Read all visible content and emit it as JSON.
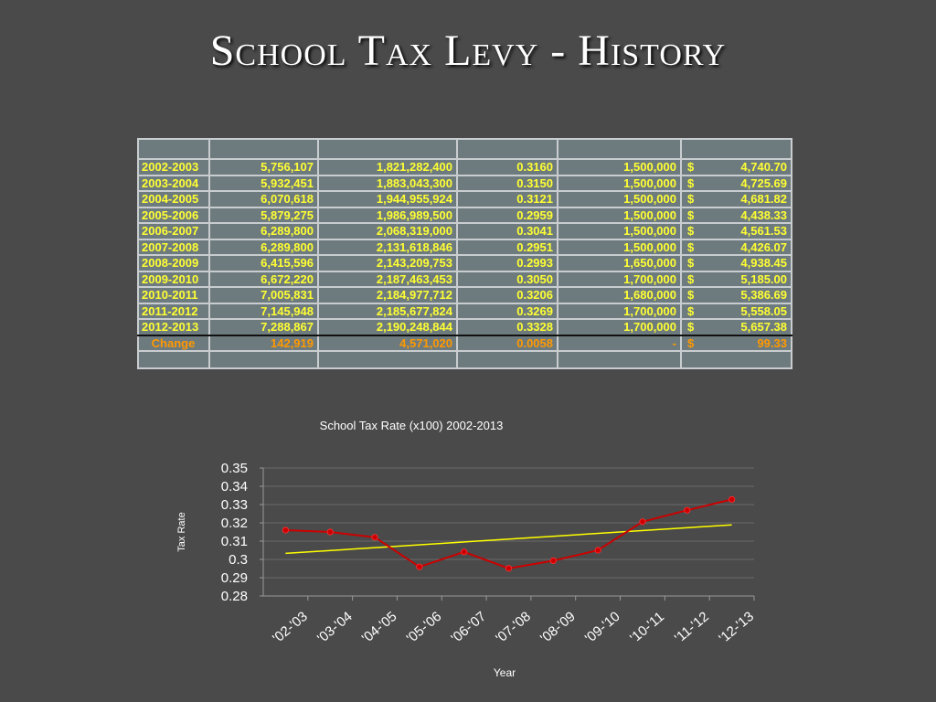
{
  "title": "School Tax Levy - History",
  "table": {
    "rows": [
      {
        "year": "2002-2003",
        "col2": "5,756,107",
        "col3": "1,821,282,400",
        "col4": "0.3160",
        "col5": "1,500,000",
        "currency": "$",
        "col6": "4,740.70"
      },
      {
        "year": "2003-2004",
        "col2": "5,932,451",
        "col3": "1,883,043,300",
        "col4": "0.3150",
        "col5": "1,500,000",
        "currency": "$",
        "col6": "4,725.69"
      },
      {
        "year": "2004-2005",
        "col2": "6,070,618",
        "col3": "1,944,955,924",
        "col4": "0.3121",
        "col5": "1,500,000",
        "currency": "$",
        "col6": "4,681.82"
      },
      {
        "year": "2005-2006",
        "col2": "5,879,275",
        "col3": "1,986,989,500",
        "col4": "0.2959",
        "col5": "1,500,000",
        "currency": "$",
        "col6": "4,438.33"
      },
      {
        "year": "2006-2007",
        "col2": "6,289,800",
        "col3": "2,068,319,000",
        "col4": "0.3041",
        "col5": "1,500,000",
        "currency": "$",
        "col6": "4,561.53"
      },
      {
        "year": "2007-2008",
        "col2": "6,289,800",
        "col3": "2,131,618,846",
        "col4": "0.2951",
        "col5": "1,500,000",
        "currency": "$",
        "col6": "4,426.07"
      },
      {
        "year": "2008-2009",
        "col2": "6,415,596",
        "col3": "2,143,209,753",
        "col4": "0.2993",
        "col5": "1,650,000",
        "currency": "$",
        "col6": "4,938.45"
      },
      {
        "year": "2009-2010",
        "col2": "6,672,220",
        "col3": "2,187,463,453",
        "col4": "0.3050",
        "col5": "1,700,000",
        "currency": "$",
        "col6": "5,185.00"
      },
      {
        "year": "2010-2011",
        "col2": "7,005,831",
        "col3": "2,184,977,712",
        "col4": "0.3206",
        "col5": "1,680,000",
        "currency": "$",
        "col6": "5,386.69"
      },
      {
        "year": "2011-2012",
        "col2": "7,145,948",
        "col3": "2,185,677,824",
        "col4": "0.3269",
        "col5": "1,700,000",
        "currency": "$",
        "col6": "5,558.05"
      },
      {
        "year": "2012-2013",
        "col2": "7,288,867",
        "col3": "2,190,248,844",
        "col4": "0.3328",
        "col5": "1,700,000",
        "currency": "$",
        "col6": "5,657.38"
      }
    ],
    "change": {
      "year": "Change",
      "col2": "142,919",
      "col3": "4,571,020",
      "col4": "0.0058",
      "col5": "-",
      "currency": "$",
      "col6": "99.33"
    }
  },
  "chart_data": {
    "type": "line",
    "title": "School Tax Rate (x100) 2002-2013",
    "xlabel": "Year",
    "ylabel": "Tax Rate",
    "categories": [
      "'02-'03",
      "'03-'04",
      "'04-'05",
      "'05-'06",
      "'06-'07",
      "'07-'08",
      "'08-'09",
      "'09-'10",
      "'10-'11",
      "'11-'12",
      "'12-'13"
    ],
    "series": [
      {
        "values": [
          0.316,
          0.315,
          0.3121,
          0.2959,
          0.3041,
          0.2951,
          0.2993,
          0.305,
          0.3206,
          0.3269,
          0.3328
        ],
        "color": "#cc0000"
      }
    ],
    "trendline": {
      "start": 0.3033,
      "end": 0.3189,
      "color": "#ffff00"
    },
    "ylim": [
      0.28,
      0.35
    ],
    "yticks": [
      "0.35",
      "0.34",
      "0.33",
      "0.32",
      "0.31",
      "0.3",
      "0.29",
      "0.28"
    ],
    "grid": true,
    "legend": "none"
  }
}
